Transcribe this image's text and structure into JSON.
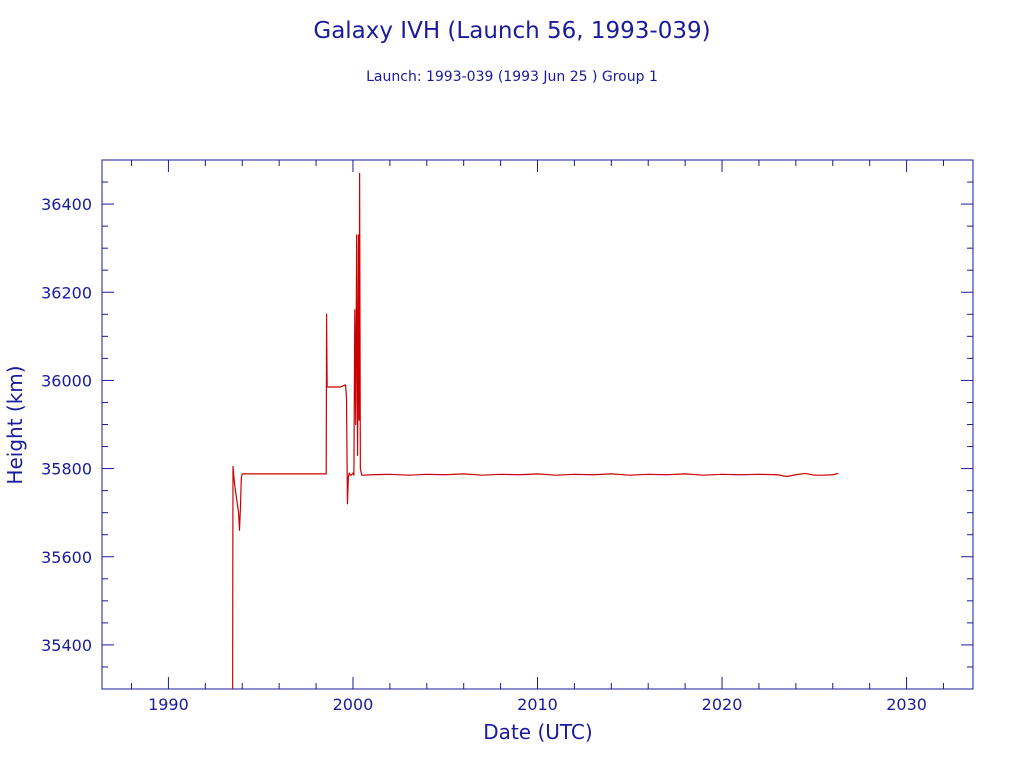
{
  "chart_data": {
    "type": "line",
    "title": "Galaxy IVH (Launch 56, 1993-039)",
    "subtitle": "Launch: 1993-039  (1993 Jun 25 )  Group 1",
    "xlabel": "Date (UTC)",
    "ylabel": "Height (km)",
    "xlim": [
      1986.4,
      2033.6
    ],
    "ylim": [
      35300,
      36500
    ],
    "xticks": [
      1990,
      2000,
      2010,
      2020,
      2030
    ],
    "yticks": [
      35400,
      35600,
      35800,
      36000,
      36200,
      36400
    ],
    "grid": false,
    "legend": "none",
    "series": [
      {
        "color": "#cc0000",
        "x": [
          1993.48,
          1993.49,
          1993.5,
          1993.55,
          1993.6,
          1993.7,
          1993.8,
          1993.85,
          1993.9,
          1993.95,
          1994.0,
          1994.1,
          1995.0,
          1996.0,
          1997.0,
          1998.0,
          1998.55,
          1998.57,
          1998.6,
          1998.65,
          1998.7,
          1999.0,
          1999.3,
          1999.6,
          1999.65,
          1999.7,
          1999.75,
          1999.8,
          1999.85,
          1999.9,
          2000.0,
          2000.05,
          2000.1,
          2000.15,
          2000.2,
          2000.25,
          2000.3,
          2000.33,
          2000.36,
          2000.4,
          2000.45,
          2000.48,
          2000.52,
          2000.6,
          2001.0,
          2002.0,
          2003.0,
          2004.0,
          2005.0,
          2006.0,
          2007.0,
          2008.0,
          2009.0,
          2010.0,
          2011.0,
          2012.0,
          2013.0,
          2014.0,
          2015.0,
          2016.0,
          2017.0,
          2018.0,
          2019.0,
          2020.0,
          2021.0,
          2022.0,
          2023.0,
          2023.5,
          2024.0,
          2024.5,
          2025.0,
          2025.5,
          2026.0,
          2026.3
        ],
        "y": [
          35290,
          35600,
          35805,
          35780,
          35760,
          35730,
          35700,
          35660,
          35710,
          35780,
          35788,
          35788,
          35788,
          35788,
          35788,
          35788,
          35788,
          36150,
          35985,
          35985,
          35985,
          35985,
          35985,
          35990,
          35960,
          35720,
          35780,
          35790,
          35785,
          35785,
          35790,
          35785,
          36160,
          35900,
          36330,
          35830,
          36330,
          35910,
          36470,
          35800,
          35790,
          35785,
          35785,
          35785,
          35786,
          35787,
          35785,
          35787,
          35786,
          35788,
          35785,
          35787,
          35786,
          35788,
          35785,
          35787,
          35786,
          35788,
          35785,
          35787,
          35786,
          35788,
          35785,
          35787,
          35786,
          35787,
          35786,
          35782,
          35786,
          35789,
          35785,
          35785,
          35786,
          35789
        ]
      }
    ]
  }
}
